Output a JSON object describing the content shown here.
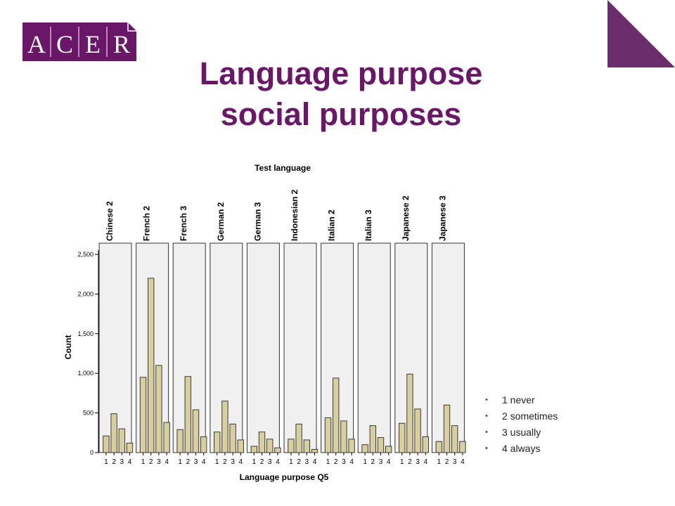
{
  "brand": {
    "logo_text": "ACER",
    "color": "#6b1769",
    "corner_color": "#6b2d6b"
  },
  "slide": {
    "title_line1": "Language purpose",
    "title_line2": "social purposes"
  },
  "legend": [
    {
      "label": "1 never"
    },
    {
      "label": "2 sometimes"
    },
    {
      "label": "3 usually"
    },
    {
      "label": "4 always"
    }
  ],
  "chart_data": {
    "type": "bar",
    "title": "Test language",
    "xlabel": "Language purpose Q5",
    "ylabel": "Count",
    "ylim": [
      0,
      2500
    ],
    "yticks": [
      0,
      500,
      1000,
      1500,
      2000,
      2500
    ],
    "ytick_labels": [
      "0",
      "500",
      "1,000",
      "1,500",
      "2,000",
      "2,500"
    ],
    "categories": [
      "1",
      "2",
      "3",
      "4"
    ],
    "bar_color": "#d9cf9d",
    "panel_color": "#f0f0f0",
    "panels": [
      {
        "name": "Chinese 2",
        "values": [
          210,
          490,
          300,
          120
        ]
      },
      {
        "name": "French 2",
        "values": [
          950,
          2200,
          1100,
          380
        ]
      },
      {
        "name": "French 3",
        "values": [
          290,
          960,
          540,
          200
        ]
      },
      {
        "name": "German 2",
        "values": [
          260,
          650,
          360,
          160
        ]
      },
      {
        "name": "German 3",
        "values": [
          80,
          260,
          170,
          60
        ]
      },
      {
        "name": "Indonesian 2",
        "values": [
          170,
          360,
          160,
          40
        ]
      },
      {
        "name": "Italian 2",
        "values": [
          440,
          940,
          400,
          170
        ]
      },
      {
        "name": "Italian 3",
        "values": [
          100,
          340,
          190,
          80
        ]
      },
      {
        "name": "Japanese 2",
        "values": [
          370,
          990,
          550,
          200
        ]
      },
      {
        "name": "Japanese 3",
        "values": [
          140,
          600,
          340,
          140
        ]
      }
    ]
  }
}
